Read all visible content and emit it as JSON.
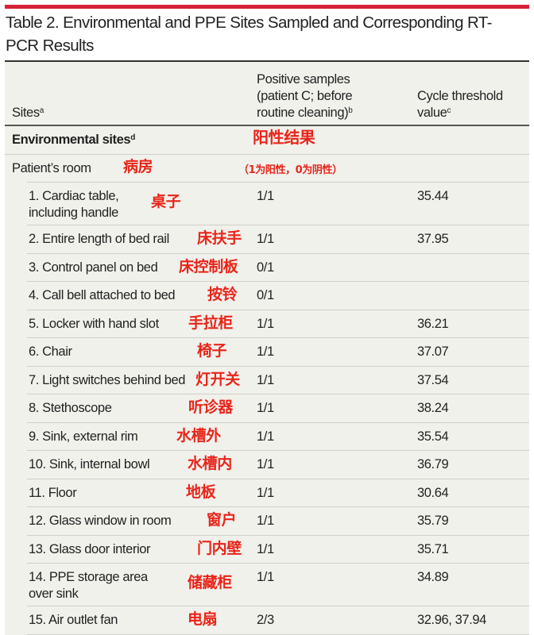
{
  "title": "Table 2. Environmental and PPE Sites Sampled and Corresponding RT-PCR Results",
  "accent_color": "#d6213a",
  "annotation_color": "#e8251a",
  "header": {
    "sites": "Sites",
    "sites_sup": "a",
    "positive": "Positive samples (patient C; before routine cleaning)",
    "positive_sup": "b",
    "cycle": "Cycle threshold value",
    "cycle_sup": "c"
  },
  "section": {
    "label": "Environmental sites",
    "sup": "d",
    "annotation": "阳性结果"
  },
  "subsection": {
    "label": "Patient’s room",
    "annotation": "病房",
    "note": "（1为阳性，0为阴性）"
  },
  "rows": [
    {
      "site": "1. Cardiac table, including handle",
      "positive": "1/1",
      "ct": "35.44",
      "annotation": "桌子"
    },
    {
      "site": "2. Entire length of bed rail",
      "positive": "1/1",
      "ct": "37.95",
      "annotation": "床扶手"
    },
    {
      "site": "3. Control panel on bed",
      "positive": "0/1",
      "ct": "",
      "annotation": "床控制板"
    },
    {
      "site": "4. Call bell attached to bed",
      "positive": "0/1",
      "ct": "",
      "annotation": "按铃"
    },
    {
      "site": "5. Locker with hand slot",
      "positive": "1/1",
      "ct": "36.21",
      "annotation": "手拉柜"
    },
    {
      "site": "6. Chair",
      "positive": "1/1",
      "ct": "37.07",
      "annotation": "椅子"
    },
    {
      "site": "7. Light switches behind bed",
      "positive": "1/1",
      "ct": "37.54",
      "annotation": "灯开关"
    },
    {
      "site": "8. Stethoscope",
      "positive": "1/1",
      "ct": "38.24",
      "annotation": "听诊器"
    },
    {
      "site": "9. Sink, external rim",
      "positive": "1/1",
      "ct": "35.54",
      "annotation": "水槽外"
    },
    {
      "site": "10. Sink, internal bowl",
      "positive": "1/1",
      "ct": "36.79",
      "annotation": "水槽内"
    },
    {
      "site": "11. Floor",
      "positive": "1/1",
      "ct": "30.64",
      "annotation": "地板"
    },
    {
      "site": "12. Glass window in room",
      "positive": "1/1",
      "ct": "35.79",
      "annotation": "窗户"
    },
    {
      "site": "13. Glass door interior",
      "positive": "1/1",
      "ct": "35.71",
      "annotation": "门内壁"
    },
    {
      "site": "14. PPE storage area over sink",
      "positive": "1/1",
      "ct": "34.89",
      "annotation": "储藏柜"
    },
    {
      "site": "15. Air outlet fan",
      "positive": "2/3",
      "ct": "32.96, 37.94",
      "annotation": "电扇"
    }
  ]
}
